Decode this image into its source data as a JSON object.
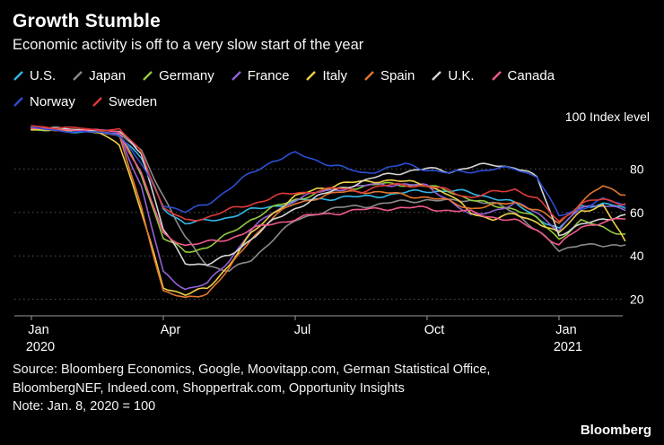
{
  "header": {
    "title": "Growth Stumble",
    "subtitle": "Economic activity is off to a very slow start of the year"
  },
  "legend": {
    "row_break_index": 8,
    "swatch_icon": "diagonal-line"
  },
  "chart_data": {
    "type": "line",
    "title": "Growth Stumble",
    "ylabel": "100 Index level",
    "xlabel": "",
    "ylim": [
      10,
      102
    ],
    "grid": "dotted-horizontal",
    "legend_position": "top",
    "x_start": 0,
    "x_step": 0.5,
    "x_unit": "months-since-Jan-2020",
    "y_gridlines": [
      20,
      40,
      60,
      80
    ],
    "x_ticks": [
      {
        "m": 0,
        "label": "Jan",
        "year": "2020"
      },
      {
        "m": 3,
        "label": "Apr",
        "year": ""
      },
      {
        "m": 6,
        "label": "Jul",
        "year": ""
      },
      {
        "m": 9,
        "label": "Oct",
        "year": ""
      },
      {
        "m": 12,
        "label": "Jan",
        "year": "2021"
      }
    ],
    "series": [
      {
        "name": "U.S.",
        "color": "#33b8e8",
        "values": [
          98,
          98,
          97,
          97,
          96,
          85,
          62,
          55,
          56,
          58,
          61,
          63,
          65,
          66,
          67,
          67,
          68,
          69,
          70,
          70,
          69,
          67,
          64,
          58,
          52,
          63,
          64,
          62
        ]
      },
      {
        "name": "Japan",
        "color": "#8a8a8a",
        "values": [
          99,
          98,
          98,
          97,
          96,
          88,
          68,
          48,
          36,
          33,
          38,
          48,
          56,
          60,
          62,
          63,
          64,
          65,
          66,
          65,
          66,
          64,
          60,
          52,
          42,
          46,
          44,
          45
        ]
      },
      {
        "name": "Germany",
        "color": "#93c83e",
        "values": [
          98,
          98,
          98,
          97,
          96,
          78,
          48,
          42,
          44,
          50,
          57,
          62,
          66,
          69,
          71,
          72,
          73,
          73,
          72,
          70,
          66,
          63,
          62,
          57,
          48,
          56,
          53,
          50
        ]
      },
      {
        "name": "France",
        "color": "#9361d6",
        "values": [
          99,
          98,
          98,
          97,
          96,
          72,
          32,
          25,
          27,
          38,
          52,
          60,
          66,
          69,
          71,
          72,
          73,
          73,
          72,
          66,
          58,
          61,
          64,
          60,
          52,
          62,
          64,
          61
        ]
      },
      {
        "name": "Italy",
        "color": "#f0d04a",
        "values": [
          98,
          98,
          98,
          97,
          92,
          60,
          26,
          22,
          25,
          36,
          50,
          60,
          67,
          71,
          73,
          74,
          75,
          74,
          73,
          68,
          60,
          57,
          59,
          56,
          50,
          61,
          63,
          47
        ]
      },
      {
        "name": "Spain",
        "color": "#e2762f",
        "values": [
          99,
          98,
          98,
          98,
          95,
          62,
          24,
          20,
          23,
          34,
          48,
          58,
          64,
          67,
          69,
          70,
          69,
          68,
          67,
          65,
          62,
          63,
          65,
          61,
          55,
          65,
          72,
          68
        ]
      },
      {
        "name": "U.K.",
        "color": "#d6d6d6",
        "values": [
          99,
          99,
          98,
          98,
          97,
          88,
          52,
          37,
          36,
          40,
          48,
          56,
          62,
          67,
          71,
          74,
          77,
          79,
          80,
          79,
          81,
          82,
          81,
          76,
          50,
          54,
          57,
          59
        ]
      },
      {
        "name": "Canada",
        "color": "#ef5a8b",
        "values": [
          99,
          98,
          98,
          98,
          97,
          78,
          50,
          45,
          46,
          48,
          52,
          55,
          57,
          59,
          60,
          61,
          62,
          62,
          62,
          61,
          60,
          58,
          56,
          52,
          45,
          53,
          56,
          57
        ]
      },
      {
        "name": "Norway",
        "color": "#2d4fd1",
        "values": [
          99,
          98,
          97,
          97,
          96,
          82,
          64,
          60,
          64,
          71,
          78,
          84,
          87,
          84,
          81,
          78,
          80,
          82,
          80,
          78,
          79,
          80,
          80,
          77,
          58,
          62,
          66,
          63
        ]
      },
      {
        "name": "Sweden",
        "color": "#e03a3a",
        "values": [
          100,
          99,
          99,
          98,
          98,
          88,
          62,
          56,
          58,
          61,
          64,
          67,
          69,
          70,
          71,
          70,
          72,
          73,
          72,
          70,
          67,
          69,
          71,
          66,
          56,
          64,
          66,
          64
        ]
      }
    ]
  },
  "footer": {
    "source": "Source: Bloomberg Economics, Google, Moovitapp.com, German Statistical Office, BloombergNEF, Indeed.com, Shoppertrak.com, Opportunity Insights",
    "note": "Note: Jan. 8, 2020 = 100",
    "brand": "Bloomberg"
  }
}
